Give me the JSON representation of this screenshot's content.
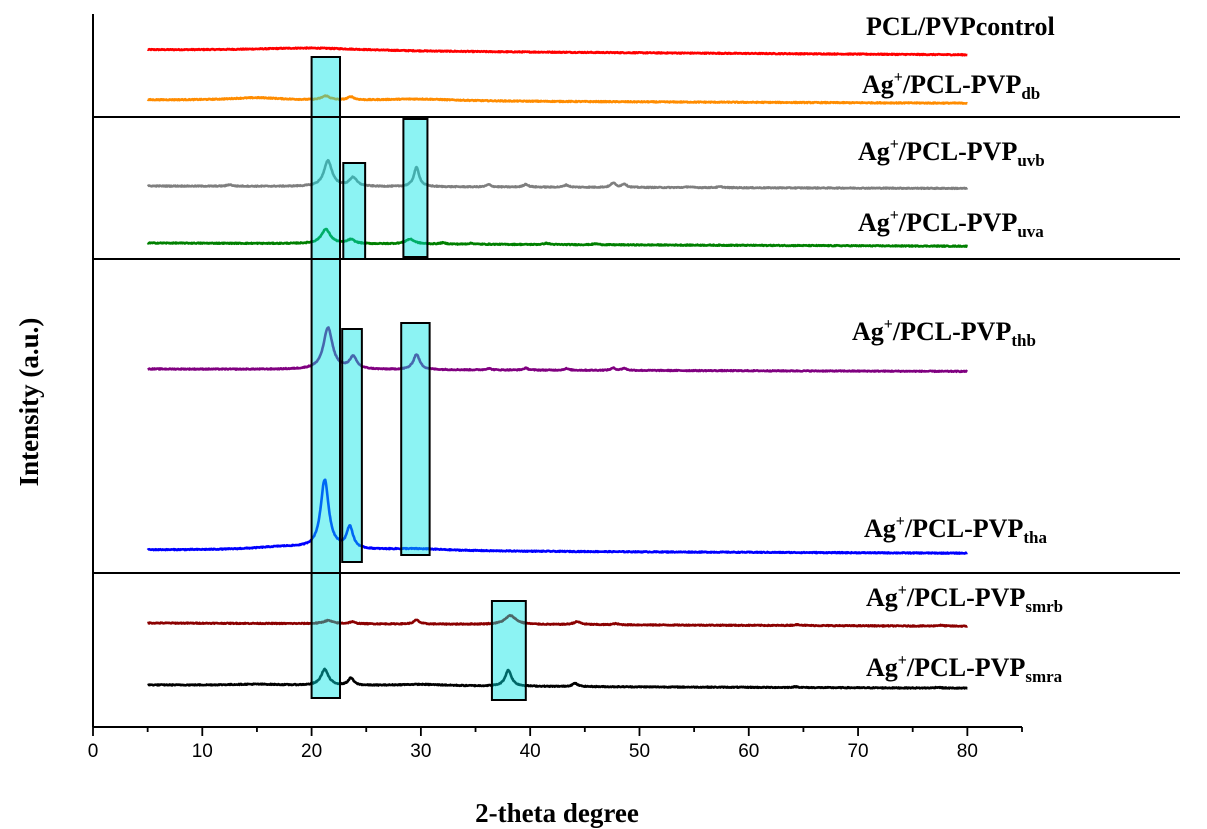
{
  "chart_data": {
    "type": "line",
    "title": "",
    "xlabel": "2-theta degree",
    "ylabel": "Intensity (a.u.)",
    "xlim": [
      0,
      85
    ],
    "x_ticks": [
      0,
      10,
      20,
      30,
      40,
      50,
      60,
      70,
      80
    ],
    "x_minor_tick_step": 5,
    "y_ticks": "none",
    "grid": false,
    "legend": "none",
    "panel_separators": 3,
    "series": [
      {
        "label_main": "PCL/PVPcontrol",
        "label_sub": "",
        "label_sup": "",
        "color": "#ff0000",
        "x_range": [
          5,
          80
        ],
        "baseline_start": 0.0,
        "baseline_end": -0.3,
        "peaks": [
          {
            "x": 20,
            "height": 0.18,
            "width": 6.0
          }
        ]
      },
      {
        "label_main": "Ag",
        "label_sup": "+",
        "label_rest": "/PCL-PVP",
        "label_sub": "db",
        "color": "#ff8c00",
        "x_range": [
          5,
          80
        ],
        "baseline_start": 0.0,
        "baseline_end": -0.2,
        "peaks": [
          {
            "x": 15,
            "height": 0.16,
            "width": 3.0
          },
          {
            "x": 21.3,
            "height": 0.25,
            "width": 0.45
          },
          {
            "x": 23.6,
            "height": 0.2,
            "width": 0.35
          },
          {
            "x": 29.8,
            "height": 0.12,
            "width": 4.0
          }
        ]
      },
      {
        "label_main": "Ag",
        "label_sup": "+",
        "label_rest": "/PCL-PVP",
        "label_sub": "uvb",
        "color": "#7f7f7f",
        "x_range": [
          5,
          80
        ],
        "baseline_start": 0.0,
        "baseline_end": -0.15,
        "peaks": [
          {
            "x": 12.5,
            "height": 0.1,
            "width": 0.25
          },
          {
            "x": 21.5,
            "height": 1.6,
            "width": 0.45
          },
          {
            "x": 23.8,
            "height": 0.55,
            "width": 0.4
          },
          {
            "x": 29.6,
            "height": 1.2,
            "width": 0.3
          },
          {
            "x": 36.2,
            "height": 0.15,
            "width": 0.25
          },
          {
            "x": 39.6,
            "height": 0.18,
            "width": 0.25
          },
          {
            "x": 43.3,
            "height": 0.14,
            "width": 0.25
          },
          {
            "x": 47.6,
            "height": 0.28,
            "width": 0.25
          },
          {
            "x": 48.6,
            "height": 0.22,
            "width": 0.25
          },
          {
            "x": 54.5,
            "height": 0.05,
            "width": 0.3
          },
          {
            "x": 57.4,
            "height": 0.06,
            "width": 0.3
          }
        ]
      },
      {
        "label_main": "Ag",
        "label_sup": "+",
        "label_rest": "/PCL-PVP",
        "label_sub": "uva",
        "color": "#008000",
        "x_range": [
          5,
          80
        ],
        "baseline_start": 0.0,
        "baseline_end": -0.2,
        "peaks": [
          {
            "x": 21.3,
            "height": 0.9,
            "width": 0.5
          },
          {
            "x": 23.6,
            "height": 0.25,
            "width": 0.4
          },
          {
            "x": 29.0,
            "height": 0.3,
            "width": 0.5
          },
          {
            "x": 32.0,
            "height": 0.08,
            "width": 0.3
          },
          {
            "x": 34.6,
            "height": 0.06,
            "width": 0.3
          },
          {
            "x": 41.5,
            "height": 0.08,
            "width": 0.3
          },
          {
            "x": 46.0,
            "height": 0.06,
            "width": 0.3
          }
        ]
      },
      {
        "label_main": "Ag",
        "label_sup": "+",
        "label_rest": "/PCL-PVP",
        "label_sub": "thb",
        "color": "#800080",
        "x_range": [
          5,
          80
        ],
        "baseline_start": 0.0,
        "baseline_end": -0.15,
        "peaks": [
          {
            "x": 21.5,
            "height": 2.6,
            "width": 0.5
          },
          {
            "x": 23.8,
            "height": 0.75,
            "width": 0.4
          },
          {
            "x": 29.6,
            "height": 0.95,
            "width": 0.35
          },
          {
            "x": 36.2,
            "height": 0.1,
            "width": 0.25
          },
          {
            "x": 39.6,
            "height": 0.12,
            "width": 0.25
          },
          {
            "x": 43.3,
            "height": 0.1,
            "width": 0.25
          },
          {
            "x": 47.6,
            "height": 0.14,
            "width": 0.25
          },
          {
            "x": 48.6,
            "height": 0.13,
            "width": 0.25
          }
        ]
      },
      {
        "label_main": "Ag",
        "label_sup": "+",
        "label_rest": "/PCL-PVP",
        "label_sub": "tha",
        "color": "#0000ff",
        "x_range": [
          5,
          80
        ],
        "baseline_start": 0.0,
        "baseline_end": -0.2,
        "peaks": [
          {
            "x": 17.5,
            "height": 0.22,
            "width": 3.5
          },
          {
            "x": 21.2,
            "height": 4.3,
            "width": 0.45
          },
          {
            "x": 23.5,
            "height": 1.35,
            "width": 0.35
          },
          {
            "x": 29.5,
            "height": 0.12,
            "width": 3.5
          }
        ]
      },
      {
        "label_main": "Ag",
        "label_sup": "+",
        "label_rest": "/PCL-PVP",
        "label_sub": "smrb",
        "color": "#8b0000",
        "x_range": [
          5,
          80
        ],
        "baseline_start": 0.0,
        "baseline_end": -0.2,
        "peaks": [
          {
            "x": 21.5,
            "height": 0.2,
            "width": 0.5
          },
          {
            "x": 23.7,
            "height": 0.12,
            "width": 0.3
          },
          {
            "x": 29.6,
            "height": 0.25,
            "width": 0.3
          },
          {
            "x": 38.2,
            "height": 0.55,
            "width": 0.6
          },
          {
            "x": 44.3,
            "height": 0.18,
            "width": 0.4
          },
          {
            "x": 47.8,
            "height": 0.07,
            "width": 0.3
          },
          {
            "x": 64.5,
            "height": 0.06,
            "width": 0.4
          },
          {
            "x": 77.5,
            "height": 0.05,
            "width": 0.4
          }
        ]
      },
      {
        "label_main": "Ag",
        "label_sup": "+",
        "label_rest": "/PCL-PVP",
        "label_sub": "smra",
        "color": "#000000",
        "x_range": [
          5,
          80
        ],
        "baseline_start": 0.0,
        "baseline_end": -0.2,
        "peaks": [
          {
            "x": 15,
            "height": 0.07,
            "width": 3.0
          },
          {
            "x": 21.2,
            "height": 1.0,
            "width": 0.4
          },
          {
            "x": 23.6,
            "height": 0.45,
            "width": 0.3
          },
          {
            "x": 30.0,
            "height": 0.1,
            "width": 3.0
          },
          {
            "x": 38.0,
            "height": 1.0,
            "width": 0.35
          },
          {
            "x": 44.1,
            "height": 0.2,
            "width": 0.3
          },
          {
            "x": 64.3,
            "height": 0.05,
            "width": 0.3
          },
          {
            "x": 77.3,
            "height": 0.05,
            "width": 0.3
          }
        ]
      }
    ],
    "highlight_regions": [
      {
        "x_range": [
          20.0,
          22.6
        ],
        "color": "#00e5e5"
      },
      {
        "x_range": [
          22.9,
          24.9
        ],
        "color": "#00e5e5"
      },
      {
        "x_range": [
          22.8,
          24.6
        ],
        "color": "#00e5e5"
      },
      {
        "x_range": [
          28.4,
          30.6
        ],
        "color": "#00e5e5"
      },
      {
        "x_range": [
          28.2,
          30.8
        ],
        "color": "#00e5e5"
      },
      {
        "x_range": [
          36.5,
          39.6
        ],
        "color": "#00e5e5"
      }
    ]
  }
}
